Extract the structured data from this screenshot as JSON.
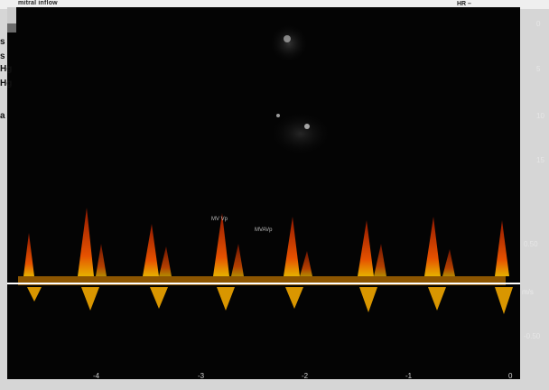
{
  "header": {
    "title_fragment": "mitral inflow",
    "hr_label": "HR –"
  },
  "side_labels": [
    "s",
    "s",
    "Hg",
    "Hg",
    "a"
  ],
  "depth_scale": [
    "0",
    "5",
    "10",
    "15"
  ],
  "velocity_scale": [
    "0.50",
    "m/s",
    "-0.50"
  ],
  "time_ticks": [
    "-4",
    "-3",
    "-2",
    "-1",
    "0"
  ],
  "annotations": [
    "MV Vp",
    "MVAVp"
  ],
  "colors": {
    "background": "#040404",
    "baseline": "#ffffff",
    "doppler_peak": "#ff8a00",
    "doppler_edge": "#b31d00"
  }
}
